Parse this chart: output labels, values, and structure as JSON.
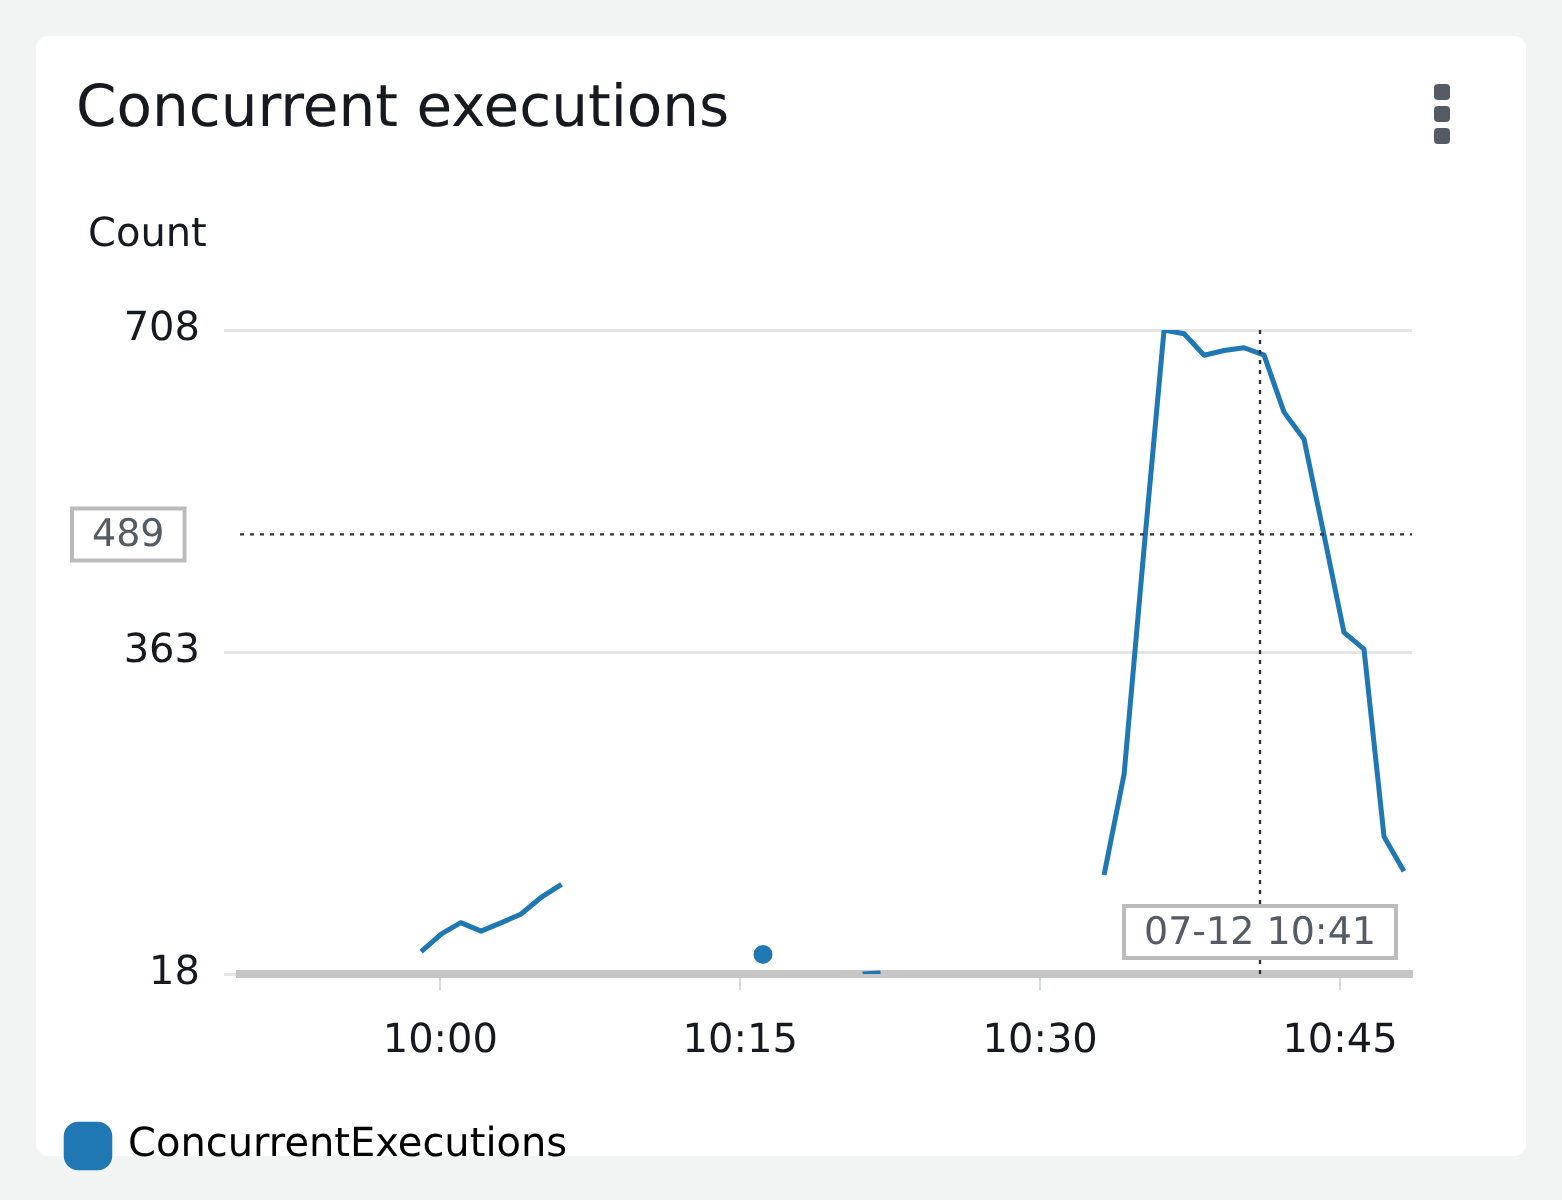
{
  "chart_data": {
    "type": "line",
    "title": "Concurrent executions",
    "ylabel": "Count",
    "series": [
      {
        "name": "ConcurrentExecutions",
        "color": "#1f77b4",
        "x": [
          9.984,
          10.001,
          10.017,
          10.034,
          10.051,
          10.067,
          10.084,
          10.101,
          10.185,
          10.269,
          10.31,
          10.352,
          10.367,
          10.46,
          10.5533,
          10.57,
          10.5867,
          10.6033,
          10.62,
          10.6367,
          10.6533,
          10.67,
          10.6867,
          10.7033,
          10.72,
          10.7367,
          10.7533,
          10.77,
          10.7867,
          10.8033
        ],
        "values": [
          42,
          61,
          73,
          64,
          73,
          82,
          100,
          114,
          null,
          39,
          null,
          18,
          19,
          null,
          124,
          232,
          475,
          708,
          704,
          681,
          686,
          689,
          681,
          620,
          591,
          488,
          384,
          366,
          165,
          128
        ]
      }
    ],
    "xlim": [
      9.833,
      10.81
    ],
    "xticks": [
      {
        "value": 10,
        "label": "10:00"
      },
      {
        "value": 10.25,
        "label": "10:15"
      },
      {
        "value": 10.5,
        "label": "10:30"
      },
      {
        "value": 10.75,
        "label": "10:45"
      }
    ],
    "ylim": [
      18,
      708
    ],
    "yticks": [
      18,
      363,
      708
    ],
    "grid": "y",
    "legend": "bottom left",
    "marker": "none",
    "line_style": "solid",
    "ref_lines": [
      {
        "axis": "y",
        "value": 489,
        "label": "489",
        "line_style": "dotted"
      },
      {
        "axis": "x",
        "value": 10.6833,
        "line_style": "dotted"
      }
    ],
    "annotations": [
      {
        "text": "07-12 10:41",
        "x": 10.6833
      }
    ]
  }
}
